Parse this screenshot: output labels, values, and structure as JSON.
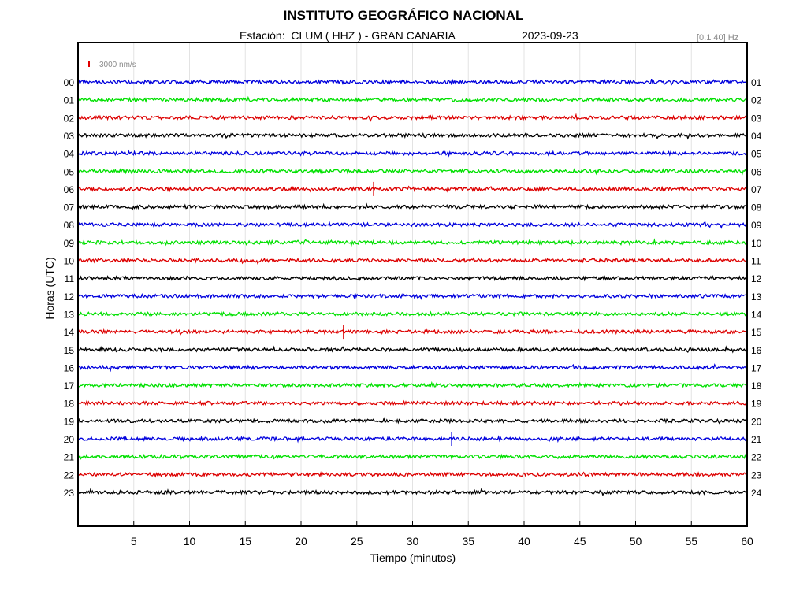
{
  "header": {
    "title": "INSTITUTO GEOGRÁFICO NACIONAL",
    "station": "Estación:  CLUM ( HHZ ) - GRAN CANARIA",
    "date": "2023-09-23",
    "filter": "[0.1 40] Hz"
  },
  "chart_data": {
    "type": "line",
    "title": "INSTITUTO GEOGRÁFICO NACIONAL",
    "xlabel": "Tiempo (minutos)",
    "ylabel": "Horas (UTC)",
    "xlim": [
      0,
      60
    ],
    "x_ticks": [
      5,
      10,
      15,
      20,
      25,
      30,
      35,
      40,
      45,
      50,
      55,
      60
    ],
    "grid": "vertical",
    "scale_bar": {
      "label": "3000 nm/s",
      "color": "#e00000"
    },
    "left_hour_labels": [
      "00",
      "01",
      "02",
      "03",
      "04",
      "05",
      "06",
      "07",
      "08",
      "09",
      "10",
      "11",
      "12",
      "13",
      "14",
      "15",
      "16",
      "17",
      "18",
      "19",
      "20",
      "21",
      "22",
      "23"
    ],
    "right_hour_labels": [
      "01",
      "02",
      "03",
      "04",
      "05",
      "06",
      "07",
      "08",
      "09",
      "10",
      "11",
      "12",
      "13",
      "14",
      "15",
      "16",
      "17",
      "18",
      "19",
      "20",
      "21",
      "22",
      "23",
      "24"
    ],
    "color_cycle": [
      "#0000dd",
      "#00e000",
      "#dd0000",
      "#000000"
    ],
    "events": [
      {
        "hour": "06",
        "minute": 26.5
      },
      {
        "hour": "14",
        "minute": 23.8
      },
      {
        "hour": "20",
        "minute": 33.5
      }
    ]
  }
}
